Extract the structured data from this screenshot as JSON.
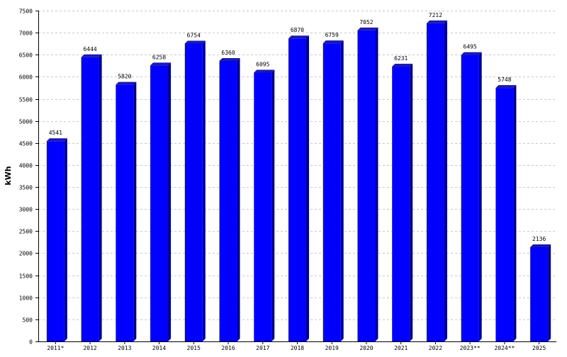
{
  "chart_data": {
    "type": "bar",
    "title": "",
    "xlabel": "",
    "ylabel": "kWh",
    "categories": [
      "2011*",
      "2012",
      "2013",
      "2014",
      "2015",
      "2016",
      "2017",
      "2018",
      "2019",
      "2020",
      "2021",
      "2022",
      "2023**",
      "2024**",
      "2025"
    ],
    "values": [
      4541,
      6444,
      5820,
      6258,
      6754,
      6360,
      6095,
      6870,
      6759,
      7052,
      6231,
      7212,
      6495,
      5748,
      2136
    ],
    "data_labels": [
      "4541",
      "6444",
      "5820",
      "6258",
      "6754",
      "6360",
      "6095",
      "6870",
      "6759",
      "7052",
      "6231",
      "7212",
      "6495",
      "5748",
      "2136"
    ],
    "ylim": [
      0,
      7500
    ],
    "y_ticks": [
      0,
      500,
      1000,
      1500,
      2000,
      2500,
      3000,
      3500,
      4000,
      4500,
      5000,
      5500,
      6000,
      6500,
      7000,
      7500
    ],
    "y_tick_labels": [
      "0",
      "500",
      "1000",
      "1500",
      "2000",
      "2500",
      "3000",
      "3500",
      "4000",
      "4500",
      "5000",
      "5500",
      "6000",
      "6500",
      "7000",
      "7500"
    ],
    "grid": true,
    "legend": "none",
    "colors": {
      "bar_front": "#0000ff",
      "bar_side": "#00007a",
      "bar_top": "#1a1ab0",
      "grid": "#c8c8c8",
      "axis": "#000000"
    }
  }
}
